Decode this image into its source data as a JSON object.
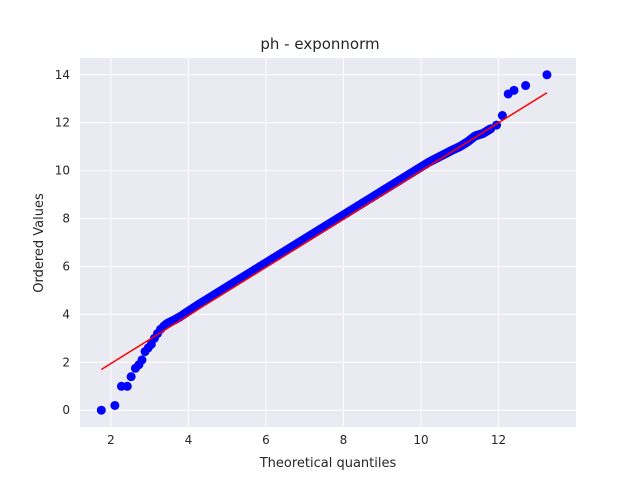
{
  "chart_data": {
    "type": "scatter",
    "title": "ph - exponnorm",
    "xlabel": "Theoretical quantiles",
    "ylabel": "Ordered Values",
    "xlim": [
      1.2,
      14.0
    ],
    "ylim": [
      -0.7,
      14.7
    ],
    "xticks": [
      2,
      4,
      6,
      8,
      10,
      12
    ],
    "yticks": [
      0,
      2,
      4,
      6,
      8,
      10,
      12,
      14
    ],
    "grid": true,
    "colors": {
      "background": "#eaeaf2",
      "grid": "#ffffff",
      "points": "#0000ff",
      "fit_line": "#ff0000"
    },
    "fit_line": {
      "x": [
        1.75,
        13.25
      ],
      "y": [
        1.7,
        13.25
      ]
    },
    "series": [
      {
        "values_x": [
          1.75,
          2.1,
          2.27,
          2.42,
          2.52,
          2.63,
          2.72,
          2.8,
          2.88,
          2.96,
          3.04,
          3.12,
          3.2,
          3.28,
          3.36,
          3.45,
          3.55,
          3.65,
          3.78,
          3.92,
          4.08,
          4.25,
          4.45,
          4.65,
          4.9,
          5.15,
          5.4,
          5.7,
          6.0,
          6.3,
          6.6,
          6.9,
          7.2,
          7.5,
          7.8,
          8.1,
          8.4,
          8.7,
          9.0,
          9.3,
          9.6,
          9.9,
          10.2,
          10.5,
          10.8,
          11.0,
          11.2,
          11.4,
          11.6,
          11.8,
          11.95,
          12.1,
          12.25,
          12.4,
          12.7,
          13.25
        ],
        "values_y": [
          0.0,
          0.2,
          1.0,
          1.0,
          1.4,
          1.75,
          1.9,
          2.1,
          2.45,
          2.6,
          2.75,
          3.0,
          3.2,
          3.38,
          3.5,
          3.62,
          3.7,
          3.78,
          3.9,
          4.05,
          4.22,
          4.4,
          4.6,
          4.8,
          5.05,
          5.3,
          5.55,
          5.85,
          6.15,
          6.45,
          6.75,
          7.05,
          7.35,
          7.65,
          7.95,
          8.25,
          8.55,
          8.85,
          9.15,
          9.45,
          9.75,
          10.05,
          10.35,
          10.6,
          10.85,
          11.0,
          11.2,
          11.45,
          11.55,
          11.75,
          11.9,
          12.3,
          13.2,
          13.35,
          13.55,
          14.0
        ]
      }
    ]
  }
}
